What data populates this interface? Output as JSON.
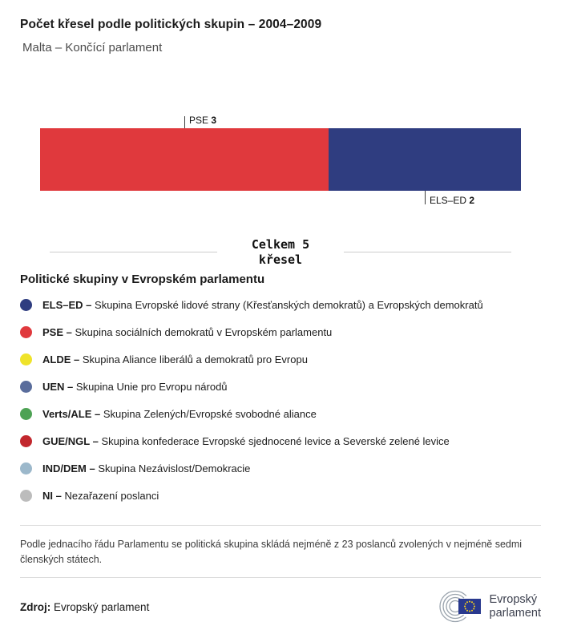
{
  "header": {
    "title": "Počet křesel podle politických skupin – 2004–2009",
    "subtitle": "Malta – Končící parlament"
  },
  "chart_data": {
    "type": "bar",
    "orientation": "horizontal-stacked",
    "title": "Počet křesel podle politických skupin – 2004–2009",
    "subtitle": "Malta – Končící parlament",
    "total_seats": 5,
    "total_line1": "Celkem 5",
    "total_line2": "křesel",
    "series": [
      {
        "name": "PSE",
        "value": 3,
        "color": "#e0393d",
        "label_position": "above"
      },
      {
        "name": "ELS–ED",
        "value": 2,
        "color": "#2f3d80",
        "label_position": "below"
      }
    ]
  },
  "legend": {
    "heading": "Politické skupiny v Evropském parlamentu",
    "items": [
      {
        "abbr": "ELS–ED –",
        "desc": "Skupina Evropské lidové strany (Křesťanských demokratů) a Evropských demokratů",
        "color": "#2f3d80"
      },
      {
        "abbr": "PSE –",
        "desc": "Skupina sociálních demokratů v Evropském parlamentu",
        "color": "#e0393d"
      },
      {
        "abbr": "ALDE –",
        "desc": "Skupina Aliance liberálů a demokratů pro Evropu",
        "color": "#efe32a"
      },
      {
        "abbr": "UEN –",
        "desc": "Skupina Unie pro Evropu národů",
        "color": "#5a6d9c"
      },
      {
        "abbr": "Verts/ALE –",
        "desc": "Skupina Zelených/Evropské svobodné aliance",
        "color": "#4da254"
      },
      {
        "abbr": "GUE/NGL –",
        "desc": "Skupina konfederace Evropské sjednocené levice a Severské zelené levice",
        "color": "#c2272d"
      },
      {
        "abbr": "IND/DEM –",
        "desc": "Skupina Nezávislost/Demokracie",
        "color": "#9cb8cb"
      },
      {
        "abbr": "NI –",
        "desc": "Nezařazení poslanci",
        "color": "#bcbcbc"
      }
    ]
  },
  "footnote": {
    "text": "Podle jednacího řádu Parlamentu se politická skupina skládá nejméně z 23 poslanců zvolených v nejméně sedmi členských státech."
  },
  "footer": {
    "source_label": "Zdroj:",
    "source_value": "Evropský parlament",
    "logo_line1": "Evropský",
    "logo_line2": "parlament"
  }
}
